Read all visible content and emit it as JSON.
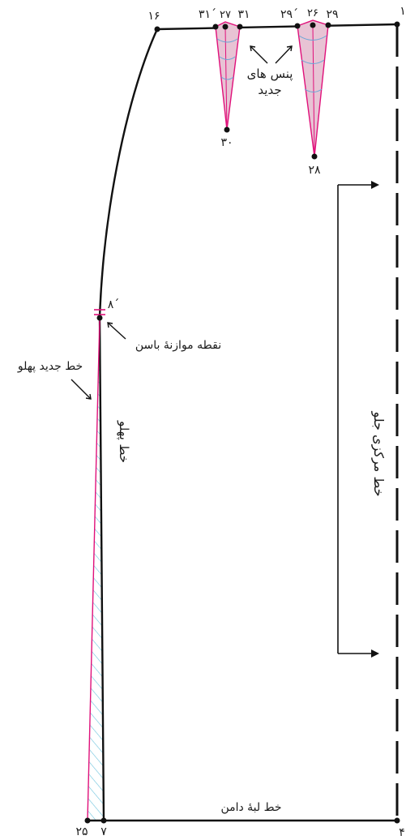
{
  "colors": {
    "outline": "#111111",
    "dart_line": "#e0107a",
    "dart_fill": "#e8c3d4",
    "dart_arc": "#6aa6d6",
    "hatch": "#6cc3dd",
    "new_side": "#e0107a"
  },
  "points": {
    "p1": "۱",
    "p16": "۱۶",
    "p31p": "۳۱´",
    "p27": "۲۷",
    "p31": "۳۱",
    "p29p": "۲۹´",
    "p26": "۲۶",
    "p29": "۲۹",
    "p30": "۳۰",
    "p28": "۲۸",
    "p8p": "۸´",
    "p25": "۲۵",
    "p7": "۷",
    "p4": "۴"
  },
  "labels": {
    "new_darts_1": "پنس های",
    "new_darts_2": "جدید",
    "hip_balance": "نقطه موازنهٔ باسن",
    "new_side_line": "خط جدید پهلو",
    "side_line": "خط پهلو",
    "center_front": "خط مرکزی جلو",
    "hem_line": "خط لبهٔ دامن"
  }
}
